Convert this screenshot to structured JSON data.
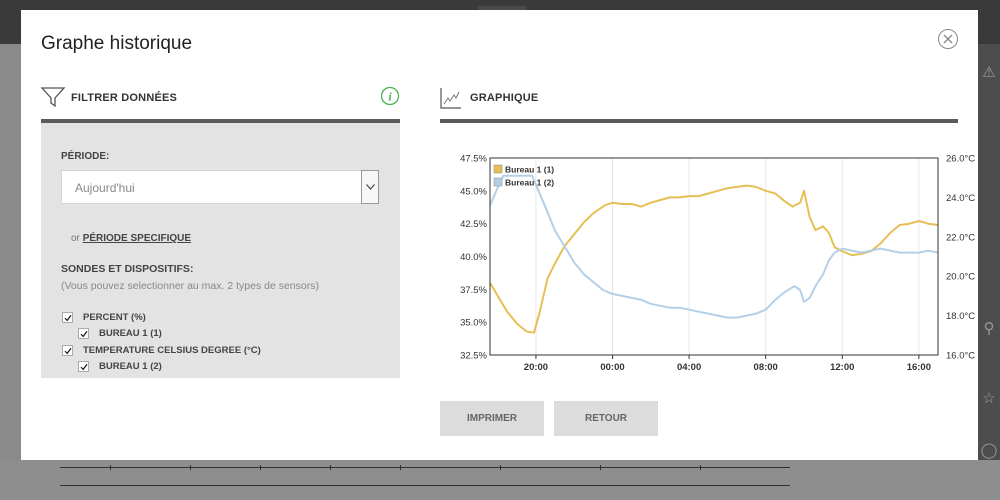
{
  "modal": {
    "title": "Graphe historique",
    "close_icon": "close-circle-icon"
  },
  "filter": {
    "section_title": "FILTRER DONNÉES",
    "section_icon": "funnel-icon",
    "info_icon": "info-icon",
    "period_label": "PÉRIODE:",
    "period_value": "Aujourd'hui",
    "or_text": "or",
    "specific_period_link": "PÉRIODE SPECIFIQUE",
    "sensors_label": "SONDES ET DISPOSITIFS:",
    "sensors_hint": "(Vous pouvez selectionner au max. 2 types de sensors)",
    "checkboxes": [
      {
        "label": "PERCENT (%)",
        "checked": true,
        "indent": 0
      },
      {
        "label": "BUREAU 1 (1)",
        "checked": true,
        "indent": 1
      },
      {
        "label": "TEMPERATURE CELSIUS DEGREE (°C)",
        "checked": true,
        "indent": 0
      },
      {
        "label": "BUREAU 1 (2)",
        "checked": true,
        "indent": 1
      }
    ]
  },
  "graph": {
    "section_title": "GRAPHIQUE",
    "section_icon": "line-chart-icon"
  },
  "buttons": {
    "print": "IMPRIMER",
    "back": "RETOUR"
  },
  "colors": {
    "series1": "#e6bf55",
    "series2": "#b3d0e8"
  },
  "chart_data": {
    "type": "line",
    "left_axis": {
      "ticks": [
        "47.5%",
        "45.0%",
        "42.5%",
        "40.0%",
        "37.5%",
        "35.0%",
        "32.5%"
      ],
      "range": [
        32.5,
        47.5
      ]
    },
    "right_axis": {
      "ticks": [
        "26.0°C",
        "24.0°C",
        "22.0°C",
        "20.0°C",
        "18.0°C",
        "16.0°C"
      ],
      "range": [
        16.0,
        26.0
      ]
    },
    "x_ticks": [
      "20:00",
      "00:00",
      "04:00",
      "08:00",
      "12:00",
      "16:00"
    ],
    "x_tick_hours": [
      20,
      24,
      28,
      32,
      36,
      40
    ],
    "x_range": [
      17.6,
      41.0
    ],
    "legend_position": "top-left",
    "series": [
      {
        "name": "Bureau 1 (1)",
        "axis": "left",
        "color": "#e6bf55",
        "points": [
          [
            17.6,
            38.0
          ],
          [
            18.0,
            37.0
          ],
          [
            18.5,
            35.8
          ],
          [
            19.0,
            34.9
          ],
          [
            19.5,
            34.3
          ],
          [
            19.9,
            34.2
          ],
          [
            20.2,
            35.8
          ],
          [
            20.6,
            38.3
          ],
          [
            21.0,
            39.5
          ],
          [
            21.5,
            40.8
          ],
          [
            22.0,
            41.7
          ],
          [
            22.5,
            42.6
          ],
          [
            23.0,
            43.3
          ],
          [
            23.6,
            43.9
          ],
          [
            24.0,
            44.1
          ],
          [
            24.5,
            44.0
          ],
          [
            25.0,
            44.0
          ],
          [
            25.5,
            43.8
          ],
          [
            26.0,
            44.1
          ],
          [
            26.5,
            44.3
          ],
          [
            27.0,
            44.5
          ],
          [
            27.5,
            44.5
          ],
          [
            28.0,
            44.6
          ],
          [
            28.5,
            44.6
          ],
          [
            29.0,
            44.8
          ],
          [
            29.5,
            45.0
          ],
          [
            30.0,
            45.2
          ],
          [
            30.5,
            45.3
          ],
          [
            31.0,
            45.4
          ],
          [
            31.5,
            45.3
          ],
          [
            32.0,
            45.0
          ],
          [
            32.5,
            44.8
          ],
          [
            33.0,
            44.2
          ],
          [
            33.4,
            43.8
          ],
          [
            33.8,
            44.1
          ],
          [
            34.0,
            45.0
          ],
          [
            34.3,
            43.0
          ],
          [
            34.6,
            42.0
          ],
          [
            35.0,
            42.3
          ],
          [
            35.3,
            41.8
          ],
          [
            35.6,
            40.7
          ],
          [
            36.0,
            40.4
          ],
          [
            36.5,
            40.1
          ],
          [
            37.0,
            40.2
          ],
          [
            37.5,
            40.4
          ],
          [
            38.0,
            41.0
          ],
          [
            38.5,
            41.8
          ],
          [
            39.0,
            42.4
          ],
          [
            39.5,
            42.5
          ],
          [
            40.0,
            42.7
          ],
          [
            40.5,
            42.5
          ],
          [
            41.0,
            42.4
          ]
        ]
      },
      {
        "name": "Bureau 1 (2)",
        "axis": "right",
        "color": "#b3d0e8",
        "points": [
          [
            17.6,
            23.6
          ],
          [
            18.0,
            24.5
          ],
          [
            18.3,
            25.1
          ],
          [
            19.8,
            25.1
          ],
          [
            20.5,
            23.5
          ],
          [
            21.0,
            22.3
          ],
          [
            21.5,
            21.5
          ],
          [
            22.0,
            20.7
          ],
          [
            22.5,
            20.1
          ],
          [
            23.0,
            19.7
          ],
          [
            23.5,
            19.3
          ],
          [
            24.0,
            19.1
          ],
          [
            24.5,
            19.0
          ],
          [
            25.0,
            18.9
          ],
          [
            25.5,
            18.8
          ],
          [
            26.0,
            18.6
          ],
          [
            26.5,
            18.5
          ],
          [
            27.0,
            18.4
          ],
          [
            27.5,
            18.4
          ],
          [
            28.0,
            18.3
          ],
          [
            28.5,
            18.2
          ],
          [
            29.0,
            18.1
          ],
          [
            29.5,
            18.0
          ],
          [
            30.0,
            17.9
          ],
          [
            30.5,
            17.9
          ],
          [
            31.0,
            18.0
          ],
          [
            31.5,
            18.1
          ],
          [
            32.0,
            18.3
          ],
          [
            32.5,
            18.8
          ],
          [
            33.0,
            19.2
          ],
          [
            33.5,
            19.5
          ],
          [
            33.8,
            19.3
          ],
          [
            34.0,
            18.7
          ],
          [
            34.3,
            18.9
          ],
          [
            34.6,
            19.5
          ],
          [
            35.0,
            20.1
          ],
          [
            35.3,
            20.8
          ],
          [
            35.6,
            21.2
          ],
          [
            36.0,
            21.4
          ],
          [
            36.5,
            21.3
          ],
          [
            37.0,
            21.2
          ],
          [
            37.5,
            21.3
          ],
          [
            38.0,
            21.4
          ],
          [
            38.5,
            21.3
          ],
          [
            39.0,
            21.2
          ],
          [
            39.5,
            21.2
          ],
          [
            40.0,
            21.2
          ],
          [
            40.5,
            21.3
          ],
          [
            41.0,
            21.2
          ]
        ]
      }
    ]
  }
}
